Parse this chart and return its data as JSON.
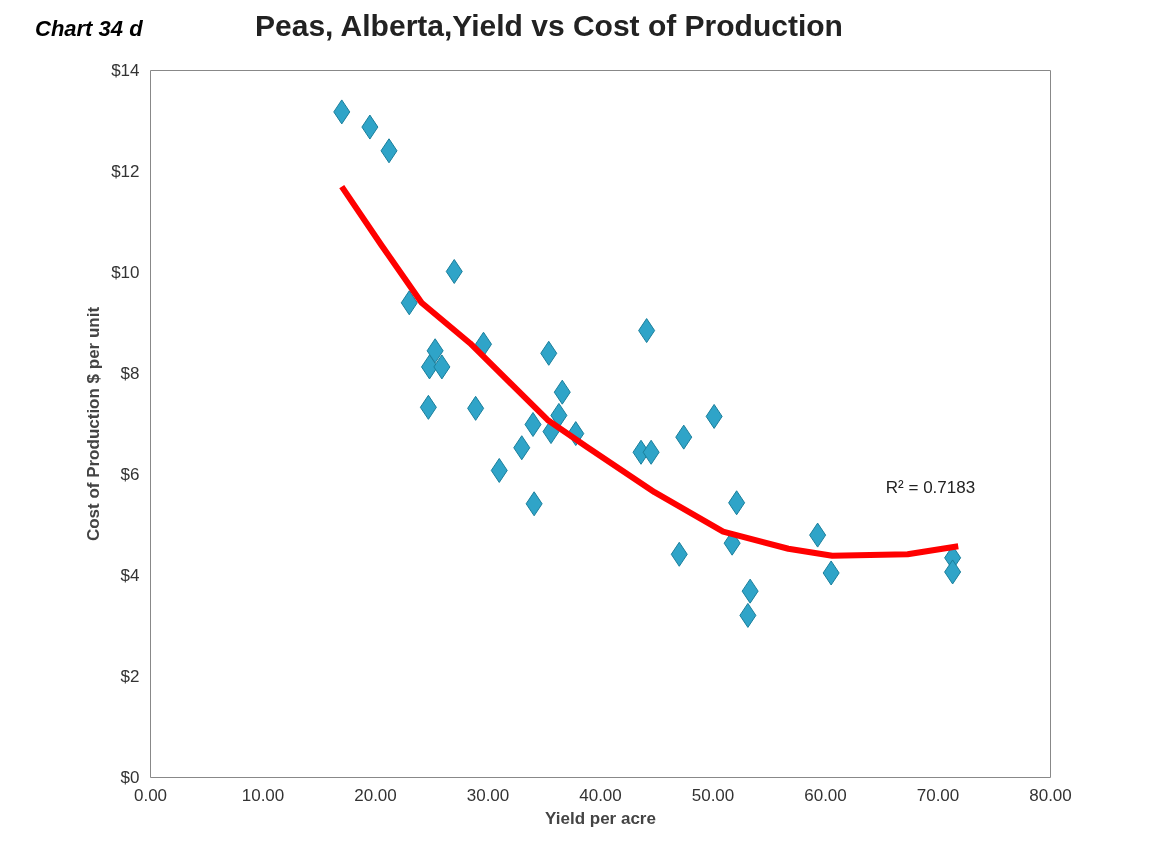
{
  "chart_data": {
    "type": "scatter",
    "title": "Peas, Alberta,Yield vs Cost of Production",
    "xlabel": "Yield per acre",
    "ylabel": "Cost of Production $ per unit",
    "annotations": [
      "Chart  34 d",
      "R² = 0.7183"
    ],
    "series": [
      {
        "color": "#2fa4c8",
        "marker": "diamond",
        "x": [
          17.0,
          19.5,
          21.2,
          23.0,
          27.0,
          24.8,
          25.3,
          25.9,
          24.7,
          29.6,
          28.9,
          31.0,
          33.0,
          34.0,
          34.1,
          35.4,
          35.6,
          36.3,
          36.6,
          37.8,
          44.1,
          43.6,
          44.5,
          47.4,
          50.1,
          47.0,
          52.1,
          51.7,
          53.3,
          53.1,
          59.3,
          60.5,
          71.3,
          71.3
        ],
        "values": [
          13.18,
          12.88,
          12.41,
          9.4,
          10.02,
          8.13,
          8.45,
          8.13,
          7.33,
          8.58,
          7.31,
          6.08,
          6.53,
          6.99,
          5.42,
          8.4,
          6.85,
          7.17,
          7.63,
          6.81,
          8.85,
          6.44,
          6.44,
          6.74,
          7.15,
          4.42,
          5.44,
          4.64,
          3.69,
          3.21,
          4.8,
          4.05,
          4.35,
          4.07
        ]
      },
      {
        "type": "line",
        "color": "#ff0000",
        "line_style": "solid",
        "marker": "none",
        "x": [
          17.0,
          20.5,
          24.1,
          28.4,
          35.3,
          38.7,
          44.8,
          50.9,
          56.7,
          60.6,
          67.3,
          71.8
        ],
        "values": [
          11.7,
          10.55,
          9.4,
          8.6,
          7.08,
          6.56,
          5.65,
          4.87,
          4.53,
          4.39,
          4.42,
          4.58
        ]
      }
    ],
    "xlim": [
      0,
      80
    ],
    "xticks": [
      {
        "value": 0,
        "label": "0.00"
      },
      {
        "value": 10,
        "label": "10.00"
      },
      {
        "value": 20,
        "label": "20.00"
      },
      {
        "value": 30,
        "label": "30.00"
      },
      {
        "value": 40,
        "label": "40.00"
      },
      {
        "value": 50,
        "label": "50.00"
      },
      {
        "value": 60,
        "label": "60.00"
      },
      {
        "value": 70,
        "label": "70.00"
      },
      {
        "value": 80,
        "label": "80.00"
      }
    ],
    "ylim": [
      0,
      14
    ],
    "yticks": [
      {
        "value": 0,
        "label": "$0"
      },
      {
        "value": 2,
        "label": "$2"
      },
      {
        "value": 4,
        "label": "$4"
      },
      {
        "value": 6,
        "label": "$6"
      },
      {
        "value": 8,
        "label": "$8"
      },
      {
        "value": 10,
        "label": "$10"
      },
      {
        "value": 12,
        "label": "$12"
      },
      {
        "value": 14,
        "label": "$14"
      }
    ],
    "grid": false
  }
}
